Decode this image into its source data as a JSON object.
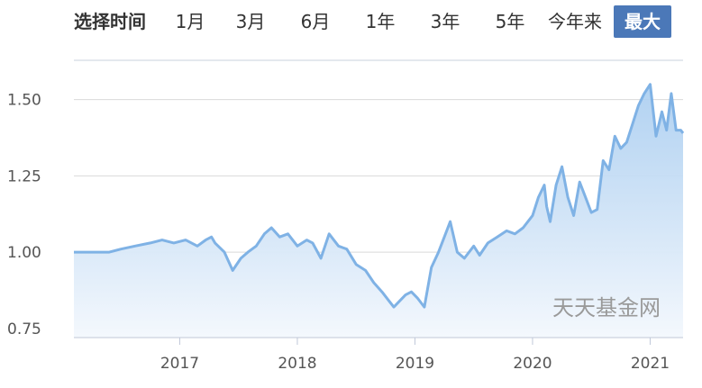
{
  "range_selector": {
    "label": "选择时间",
    "options": [
      {
        "label": "1月",
        "active": false
      },
      {
        "label": "3月",
        "active": false
      },
      {
        "label": "6月",
        "active": false
      },
      {
        "label": "1年",
        "active": false
      },
      {
        "label": "3年",
        "active": false
      },
      {
        "label": "5年",
        "active": false
      },
      {
        "label": "今年来",
        "active": false
      },
      {
        "label": "最大",
        "active": true
      }
    ],
    "active_color": "#4b78b8"
  },
  "watermark": "天天基金网",
  "colors": {
    "line": "#7fb2e5",
    "fill_top": "#a9cdf0",
    "fill_bottom": "#f4f8fd",
    "grid": "#d9d9d9",
    "axis": "#c0c8d8"
  },
  "chart_data": {
    "type": "area",
    "title": "",
    "xlabel": "",
    "ylabel": "",
    "xlim": [
      2016.1,
      2021.28
    ],
    "ylim": [
      0.72,
      1.62
    ],
    "y_ticks": [
      0.75,
      1.0,
      1.25,
      1.5
    ],
    "y_tick_labels": [
      "0.75",
      "1.00",
      "1.25",
      "1.50"
    ],
    "x_ticks": [
      2017,
      2018,
      2019,
      2020,
      2021
    ],
    "x_tick_labels": [
      "2017",
      "2018",
      "2019",
      "2020",
      "2021"
    ],
    "grid": true,
    "legend": "none",
    "series": [
      {
        "x": [
          2016.1,
          2016.25,
          2016.4,
          2016.5,
          2016.62,
          2016.75,
          2016.85,
          2016.95,
          2017.05,
          2017.15,
          2017.22,
          2017.27,
          2017.3,
          2017.38,
          2017.45,
          2017.52,
          2017.58,
          2017.65,
          2017.72,
          2017.78,
          2017.85,
          2017.92,
          2018.0,
          2018.08,
          2018.13,
          2018.2,
          2018.27,
          2018.35,
          2018.42,
          2018.5,
          2018.58,
          2018.65,
          2018.72,
          2018.78,
          2018.82,
          2018.87,
          2018.92,
          2018.97,
          2019.02,
          2019.08,
          2019.14,
          2019.2,
          2019.25,
          2019.3,
          2019.36,
          2019.42,
          2019.5,
          2019.55,
          2019.62,
          2019.7,
          2019.78,
          2019.85,
          2019.92,
          2020.0,
          2020.05,
          2020.1,
          2020.12,
          2020.15,
          2020.2,
          2020.25,
          2020.3,
          2020.35,
          2020.4,
          2020.45,
          2020.5,
          2020.55,
          2020.6,
          2020.65,
          2020.7,
          2020.75,
          2020.8,
          2020.85,
          2020.9,
          2020.95,
          2021.0,
          2021.05,
          2021.1,
          2021.14,
          2021.18,
          2021.22,
          2021.26,
          2021.28
        ],
        "y": [
          1.0,
          1.0,
          1.0,
          1.01,
          1.02,
          1.03,
          1.04,
          1.03,
          1.04,
          1.02,
          1.04,
          1.05,
          1.03,
          1.0,
          0.94,
          0.98,
          1.0,
          1.02,
          1.06,
          1.08,
          1.05,
          1.06,
          1.02,
          1.04,
          1.03,
          0.98,
          1.06,
          1.02,
          1.01,
          0.96,
          0.94,
          0.9,
          0.87,
          0.84,
          0.82,
          0.84,
          0.86,
          0.87,
          0.85,
          0.82,
          0.95,
          1.0,
          1.05,
          1.1,
          1.0,
          0.98,
          1.02,
          0.99,
          1.03,
          1.05,
          1.07,
          1.06,
          1.08,
          1.12,
          1.18,
          1.22,
          1.15,
          1.1,
          1.22,
          1.28,
          1.18,
          1.12,
          1.23,
          1.18,
          1.13,
          1.14,
          1.3,
          1.27,
          1.38,
          1.34,
          1.36,
          1.42,
          1.48,
          1.52,
          1.55,
          1.38,
          1.46,
          1.4,
          1.52,
          1.4,
          1.4,
          1.39
        ]
      }
    ]
  }
}
